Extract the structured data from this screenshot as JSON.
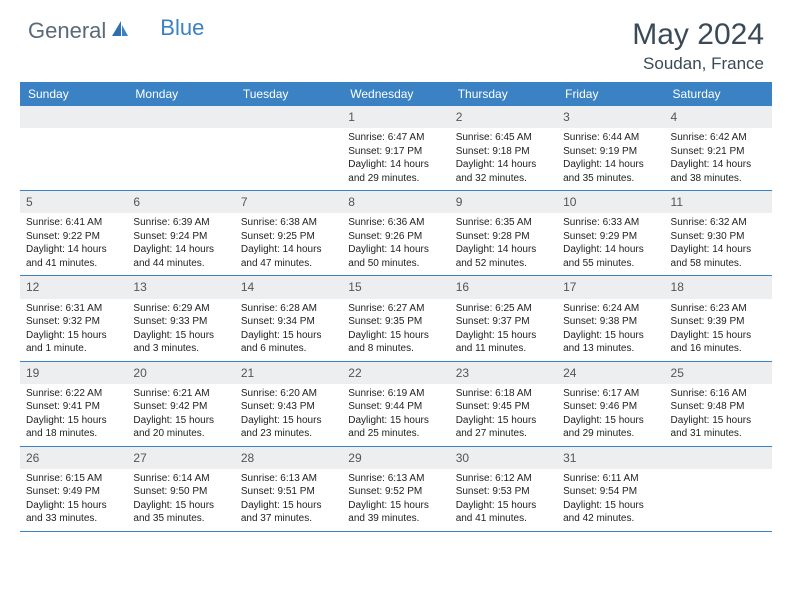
{
  "logo": {
    "part1": "General",
    "part2": "Blue"
  },
  "header": {
    "title": "May 2024",
    "location": "Soudan, France"
  },
  "colors": {
    "accent": "#3b82c4",
    "daynum_bg": "#eceef0",
    "text": "#3a4a58",
    "body_text": "#222222"
  },
  "calendar": {
    "day_headers": [
      "Sunday",
      "Monday",
      "Tuesday",
      "Wednesday",
      "Thursday",
      "Friday",
      "Saturday"
    ],
    "weeks": [
      [
        null,
        null,
        null,
        {
          "n": "1",
          "sunrise": "6:47 AM",
          "sunset": "9:17 PM",
          "daylight": "14 hours and 29 minutes."
        },
        {
          "n": "2",
          "sunrise": "6:45 AM",
          "sunset": "9:18 PM",
          "daylight": "14 hours and 32 minutes."
        },
        {
          "n": "3",
          "sunrise": "6:44 AM",
          "sunset": "9:19 PM",
          "daylight": "14 hours and 35 minutes."
        },
        {
          "n": "4",
          "sunrise": "6:42 AM",
          "sunset": "9:21 PM",
          "daylight": "14 hours and 38 minutes."
        }
      ],
      [
        {
          "n": "5",
          "sunrise": "6:41 AM",
          "sunset": "9:22 PM",
          "daylight": "14 hours and 41 minutes."
        },
        {
          "n": "6",
          "sunrise": "6:39 AM",
          "sunset": "9:24 PM",
          "daylight": "14 hours and 44 minutes."
        },
        {
          "n": "7",
          "sunrise": "6:38 AM",
          "sunset": "9:25 PM",
          "daylight": "14 hours and 47 minutes."
        },
        {
          "n": "8",
          "sunrise": "6:36 AM",
          "sunset": "9:26 PM",
          "daylight": "14 hours and 50 minutes."
        },
        {
          "n": "9",
          "sunrise": "6:35 AM",
          "sunset": "9:28 PM",
          "daylight": "14 hours and 52 minutes."
        },
        {
          "n": "10",
          "sunrise": "6:33 AM",
          "sunset": "9:29 PM",
          "daylight": "14 hours and 55 minutes."
        },
        {
          "n": "11",
          "sunrise": "6:32 AM",
          "sunset": "9:30 PM",
          "daylight": "14 hours and 58 minutes."
        }
      ],
      [
        {
          "n": "12",
          "sunrise": "6:31 AM",
          "sunset": "9:32 PM",
          "daylight": "15 hours and 1 minute."
        },
        {
          "n": "13",
          "sunrise": "6:29 AM",
          "sunset": "9:33 PM",
          "daylight": "15 hours and 3 minutes."
        },
        {
          "n": "14",
          "sunrise": "6:28 AM",
          "sunset": "9:34 PM",
          "daylight": "15 hours and 6 minutes."
        },
        {
          "n": "15",
          "sunrise": "6:27 AM",
          "sunset": "9:35 PM",
          "daylight": "15 hours and 8 minutes."
        },
        {
          "n": "16",
          "sunrise": "6:25 AM",
          "sunset": "9:37 PM",
          "daylight": "15 hours and 11 minutes."
        },
        {
          "n": "17",
          "sunrise": "6:24 AM",
          "sunset": "9:38 PM",
          "daylight": "15 hours and 13 minutes."
        },
        {
          "n": "18",
          "sunrise": "6:23 AM",
          "sunset": "9:39 PM",
          "daylight": "15 hours and 16 minutes."
        }
      ],
      [
        {
          "n": "19",
          "sunrise": "6:22 AM",
          "sunset": "9:41 PM",
          "daylight": "15 hours and 18 minutes."
        },
        {
          "n": "20",
          "sunrise": "6:21 AM",
          "sunset": "9:42 PM",
          "daylight": "15 hours and 20 minutes."
        },
        {
          "n": "21",
          "sunrise": "6:20 AM",
          "sunset": "9:43 PM",
          "daylight": "15 hours and 23 minutes."
        },
        {
          "n": "22",
          "sunrise": "6:19 AM",
          "sunset": "9:44 PM",
          "daylight": "15 hours and 25 minutes."
        },
        {
          "n": "23",
          "sunrise": "6:18 AM",
          "sunset": "9:45 PM",
          "daylight": "15 hours and 27 minutes."
        },
        {
          "n": "24",
          "sunrise": "6:17 AM",
          "sunset": "9:46 PM",
          "daylight": "15 hours and 29 minutes."
        },
        {
          "n": "25",
          "sunrise": "6:16 AM",
          "sunset": "9:48 PM",
          "daylight": "15 hours and 31 minutes."
        }
      ],
      [
        {
          "n": "26",
          "sunrise": "6:15 AM",
          "sunset": "9:49 PM",
          "daylight": "15 hours and 33 minutes."
        },
        {
          "n": "27",
          "sunrise": "6:14 AM",
          "sunset": "9:50 PM",
          "daylight": "15 hours and 35 minutes."
        },
        {
          "n": "28",
          "sunrise": "6:13 AM",
          "sunset": "9:51 PM",
          "daylight": "15 hours and 37 minutes."
        },
        {
          "n": "29",
          "sunrise": "6:13 AM",
          "sunset": "9:52 PM",
          "daylight": "15 hours and 39 minutes."
        },
        {
          "n": "30",
          "sunrise": "6:12 AM",
          "sunset": "9:53 PM",
          "daylight": "15 hours and 41 minutes."
        },
        {
          "n": "31",
          "sunrise": "6:11 AM",
          "sunset": "9:54 PM",
          "daylight": "15 hours and 42 minutes."
        },
        null
      ]
    ]
  },
  "labels": {
    "sunrise": "Sunrise:",
    "sunset": "Sunset:",
    "daylight": "Daylight:"
  }
}
